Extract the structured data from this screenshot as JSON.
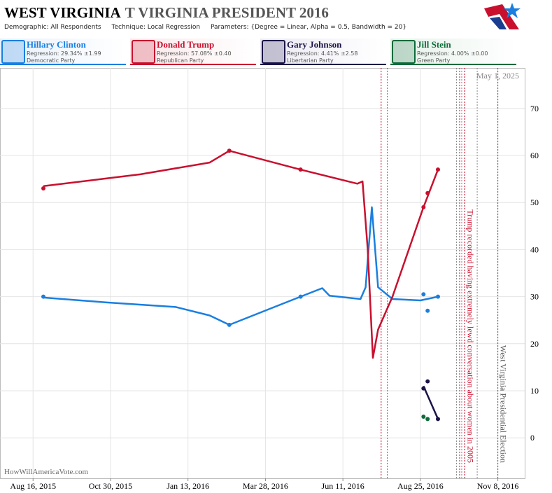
{
  "chart_data": {
    "type": "line",
    "title": "WEST VIRGINIA",
    "title_overlay": "T VIRGINIA PRESIDENT 2016",
    "parameters": [
      "Demographic: All Respondents",
      "Technique: Local Regression",
      "Parameters: {Degree = Linear, Alpha = 0.5, Bandwidth = 20}"
    ],
    "watermark": "HowWillAmericaVote.com",
    "date_stamp": "May 1, 2025",
    "xlim": [
      "2015-07-15",
      "2016-12-04"
    ],
    "xticks": [
      {
        "value": "2015-08-16",
        "label": "Aug 16, 2015"
      },
      {
        "value": "2015-10-30",
        "label": "Oct 30, 2015"
      },
      {
        "value": "2016-01-13",
        "label": "Jan 13, 2016"
      },
      {
        "value": "2016-03-28",
        "label": "Mar 28, 2016"
      },
      {
        "value": "2016-06-11",
        "label": "Jun 11, 2016"
      },
      {
        "value": "2016-08-25",
        "label": "Aug 25, 2016"
      },
      {
        "value": "2016-11-08",
        "label": "Nov 8, 2016"
      }
    ],
    "ylim": [
      -8.6,
      78.6
    ],
    "yticks": [
      0,
      10,
      20,
      30,
      40,
      50,
      60,
      70
    ],
    "grid": true,
    "series": [
      {
        "name": "Hillary Clinton",
        "color": "#1a7fe0",
        "regression_label": "Regression: 29.34% ±1.99",
        "party": "Democratic Party",
        "x": [
          "2015-08-26",
          "2016-02-22",
          "2016-05-01",
          "2016-08-28",
          "2016-09-01",
          "2016-09-11"
        ],
        "values": [
          30,
          24,
          30,
          30.5,
          27,
          30
        ],
        "trend_x": [
          "2015-08-26",
          "2015-10-25",
          "2016-01-01",
          "2016-02-03",
          "2016-02-22",
          "2016-05-01",
          "2016-05-22",
          "2016-05-29",
          "2016-06-28",
          "2016-07-03",
          "2016-07-09",
          "2016-07-15",
          "2016-07-29",
          "2016-08-25",
          "2016-09-11"
        ],
        "trend": [
          29.8,
          28.8,
          27.8,
          26,
          24,
          30,
          31.8,
          30.2,
          29.5,
          32,
          49,
          32,
          29.5,
          29.2,
          30
        ]
      },
      {
        "name": "Donald Trump",
        "color": "#c8102e",
        "regression_label": "Regression: 57.08% ±0.40",
        "party": "Republican Party",
        "x": [
          "2015-08-26",
          "2016-02-22",
          "2016-05-01",
          "2016-08-28",
          "2016-09-01",
          "2016-09-11"
        ],
        "values": [
          53,
          61,
          57,
          49,
          52,
          57
        ],
        "trend_x": [
          "2015-08-26",
          "2015-11-28",
          "2016-02-03",
          "2016-02-22",
          "2016-05-01",
          "2016-06-25",
          "2016-06-30",
          "2016-07-05",
          "2016-07-10",
          "2016-07-15",
          "2016-07-29",
          "2016-08-28",
          "2016-09-11"
        ],
        "trend": [
          53.5,
          56,
          58.5,
          61,
          57,
          54,
          54.5,
          40,
          17,
          23,
          30,
          49,
          57
        ]
      },
      {
        "name": "Gary Johnson",
        "color": "#1a1446",
        "regression_label": "Regression: 4.41% ±2.58",
        "party": "Libertarian Party",
        "x": [
          "2016-08-28",
          "2016-09-01",
          "2016-09-11"
        ],
        "values": [
          10.5,
          12,
          4
        ],
        "trend_x": [
          "2016-08-28",
          "2016-09-11"
        ],
        "trend": [
          11,
          4
        ]
      },
      {
        "name": "Jill Stein",
        "color": "#0e6b3a",
        "regression_label": "Regression: 4.00% ±0.00",
        "party": "Green Party",
        "x": [
          "2016-08-28",
          "2016-09-01"
        ],
        "values": [
          4.5,
          4
        ]
      }
    ],
    "event_lines": [
      {
        "x": "2016-07-18",
        "color": "#c8102e"
      },
      {
        "x": "2016-07-24",
        "color": "#1a7fe0"
      },
      {
        "x": "2016-09-29",
        "color": "#888888"
      },
      {
        "x": "2016-10-02",
        "color": "#c8102e"
      },
      {
        "x": "2016-10-04",
        "color": "#888888"
      },
      {
        "x": "2016-10-07",
        "color": "#c8102e"
      },
      {
        "x": "2016-10-19",
        "color": "#888888"
      }
    ],
    "annotations": [
      {
        "x": "2016-10-07",
        "text": "Trump recorded having extremely lewd conversation about women in 2005",
        "color": "#c8102e"
      },
      {
        "x": "2016-11-08",
        "text": "West Virginia Presidential Election",
        "color": "#555555"
      }
    ]
  }
}
